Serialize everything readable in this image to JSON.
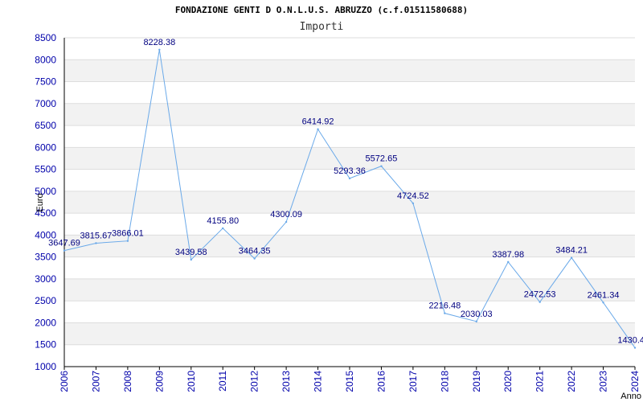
{
  "chart_data": {
    "type": "line",
    "title": "FONDAZIONE GENTI D O.N.L.U.S. ABRUZZO (c.f.01511580688)",
    "subtitle": "Importi",
    "xlabel": "Anno",
    "ylabel": "Euro",
    "ylim": [
      1000,
      8500
    ],
    "ytick_step": 500,
    "grid": true,
    "x": [
      2006,
      2007,
      2008,
      2009,
      2010,
      2011,
      2012,
      2013,
      2014,
      2015,
      2016,
      2017,
      2018,
      2019,
      2020,
      2021,
      2022,
      2023,
      2024
    ],
    "series": [
      {
        "values": [
          3647.69,
          3815.67,
          3866.01,
          8228.38,
          3439.58,
          4155.8,
          3464.35,
          4300.09,
          6414.92,
          5293.36,
          5572.65,
          4724.52,
          2216.48,
          2030.03,
          3387.98,
          2472.53,
          3484.21,
          2461.34,
          1430.4
        ],
        "labels": [
          "3647.69",
          "3815.67",
          "3866.01",
          "8228.38",
          "3439.58",
          "4155.80",
          "3464.35",
          "4300.09",
          "6414.92",
          "5293.36",
          "5572.65",
          "4724.52",
          "2216.48",
          "2030.03",
          "3387.98",
          "2472.53",
          "3484.21",
          "2461.34",
          "1430.4"
        ],
        "color": "#6aa9e9"
      }
    ],
    "colors": {
      "band": "#f2f2f2",
      "tick_text": "#0000aa",
      "label_text": "#000080",
      "axis": "#000000"
    }
  }
}
